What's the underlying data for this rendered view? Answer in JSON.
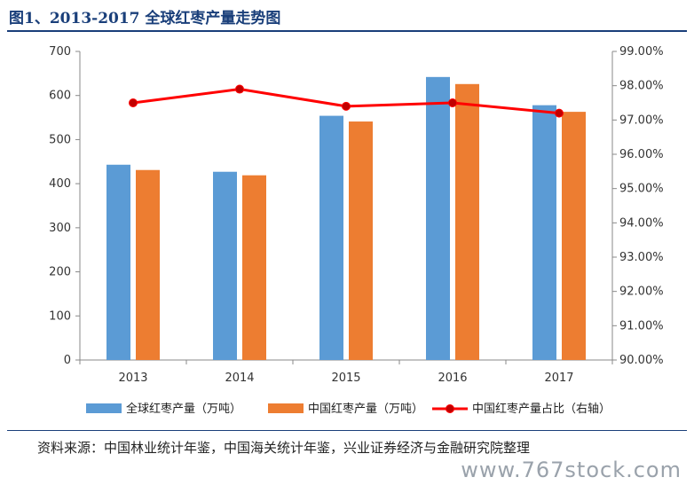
{
  "header": {
    "title": "图1、2013-2017 全球红枣产量走势图"
  },
  "footer": {
    "source": "资料来源：中国林业统计年鉴，中国海关统计年鉴，兴业证券经济与金融研究院整理",
    "watermark": "www.767stock.com"
  },
  "colors": {
    "global": "#5b9bd5",
    "china": "#ed7d31",
    "share": "#ff0000",
    "share_marker": "#c00000"
  },
  "chart_data": {
    "type": "bar",
    "title": "",
    "categories": [
      "2013",
      "2014",
      "2015",
      "2016",
      "2017"
    ],
    "series": [
      {
        "name": "全球红枣产量（万吨）",
        "type": "bar",
        "axis": "left",
        "values": [
          443,
          427,
          554,
          642,
          578
        ]
      },
      {
        "name": "中国红枣产量（万吨）",
        "type": "bar",
        "axis": "left",
        "values": [
          431,
          419,
          541,
          626,
          563
        ]
      },
      {
        "name": "中国红枣产量占比（右轴）",
        "type": "line",
        "axis": "right",
        "values": [
          97.5,
          97.9,
          97.4,
          97.5,
          97.2
        ]
      }
    ],
    "y_left": {
      "min": 0,
      "max": 700,
      "ticks": [
        "0",
        "100",
        "200",
        "300",
        "400",
        "500",
        "600",
        "700"
      ]
    },
    "y_right": {
      "min": 90,
      "max": 99,
      "ticks": [
        "90.00%",
        "91.00%",
        "92.00%",
        "93.00%",
        "94.00%",
        "95.00%",
        "96.00%",
        "97.00%",
        "98.00%",
        "99.00%"
      ]
    },
    "grid": false,
    "legend": "bottom"
  }
}
